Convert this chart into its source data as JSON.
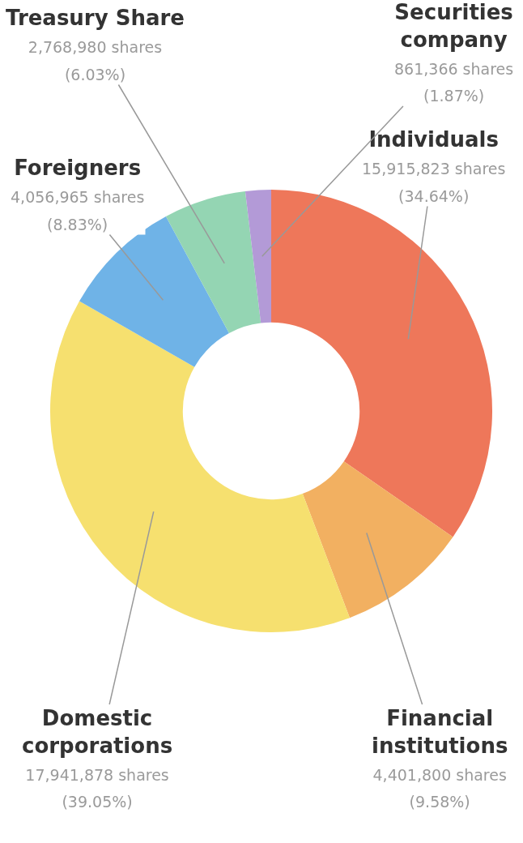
{
  "chart_data": {
    "type": "donut",
    "categories": [
      "Individuals",
      "Financial institutions",
      "Domestic corporations",
      "Foreigners",
      "Treasury Share",
      "Securities company"
    ],
    "values": [
      15915823,
      4401800,
      17941878,
      4056965,
      2768980,
      861366
    ],
    "value_labels": [
      "15,915,823 shares\n(34.64%)",
      "4,401,800 shares\n(9.58%)",
      "17,941,878 shares\n(39.05%)",
      "4,056,965 shares\n(8.83%)",
      "2,768,980 shares\n(6.03%)",
      "861,366 shares\n(1.87%)"
    ],
    "colors": [
      "#ee775a",
      "#f2b061",
      "#f6e06f",
      "#6fb3e7",
      "#94d5b3",
      "#b39ad7"
    ],
    "legend": false
  }
}
